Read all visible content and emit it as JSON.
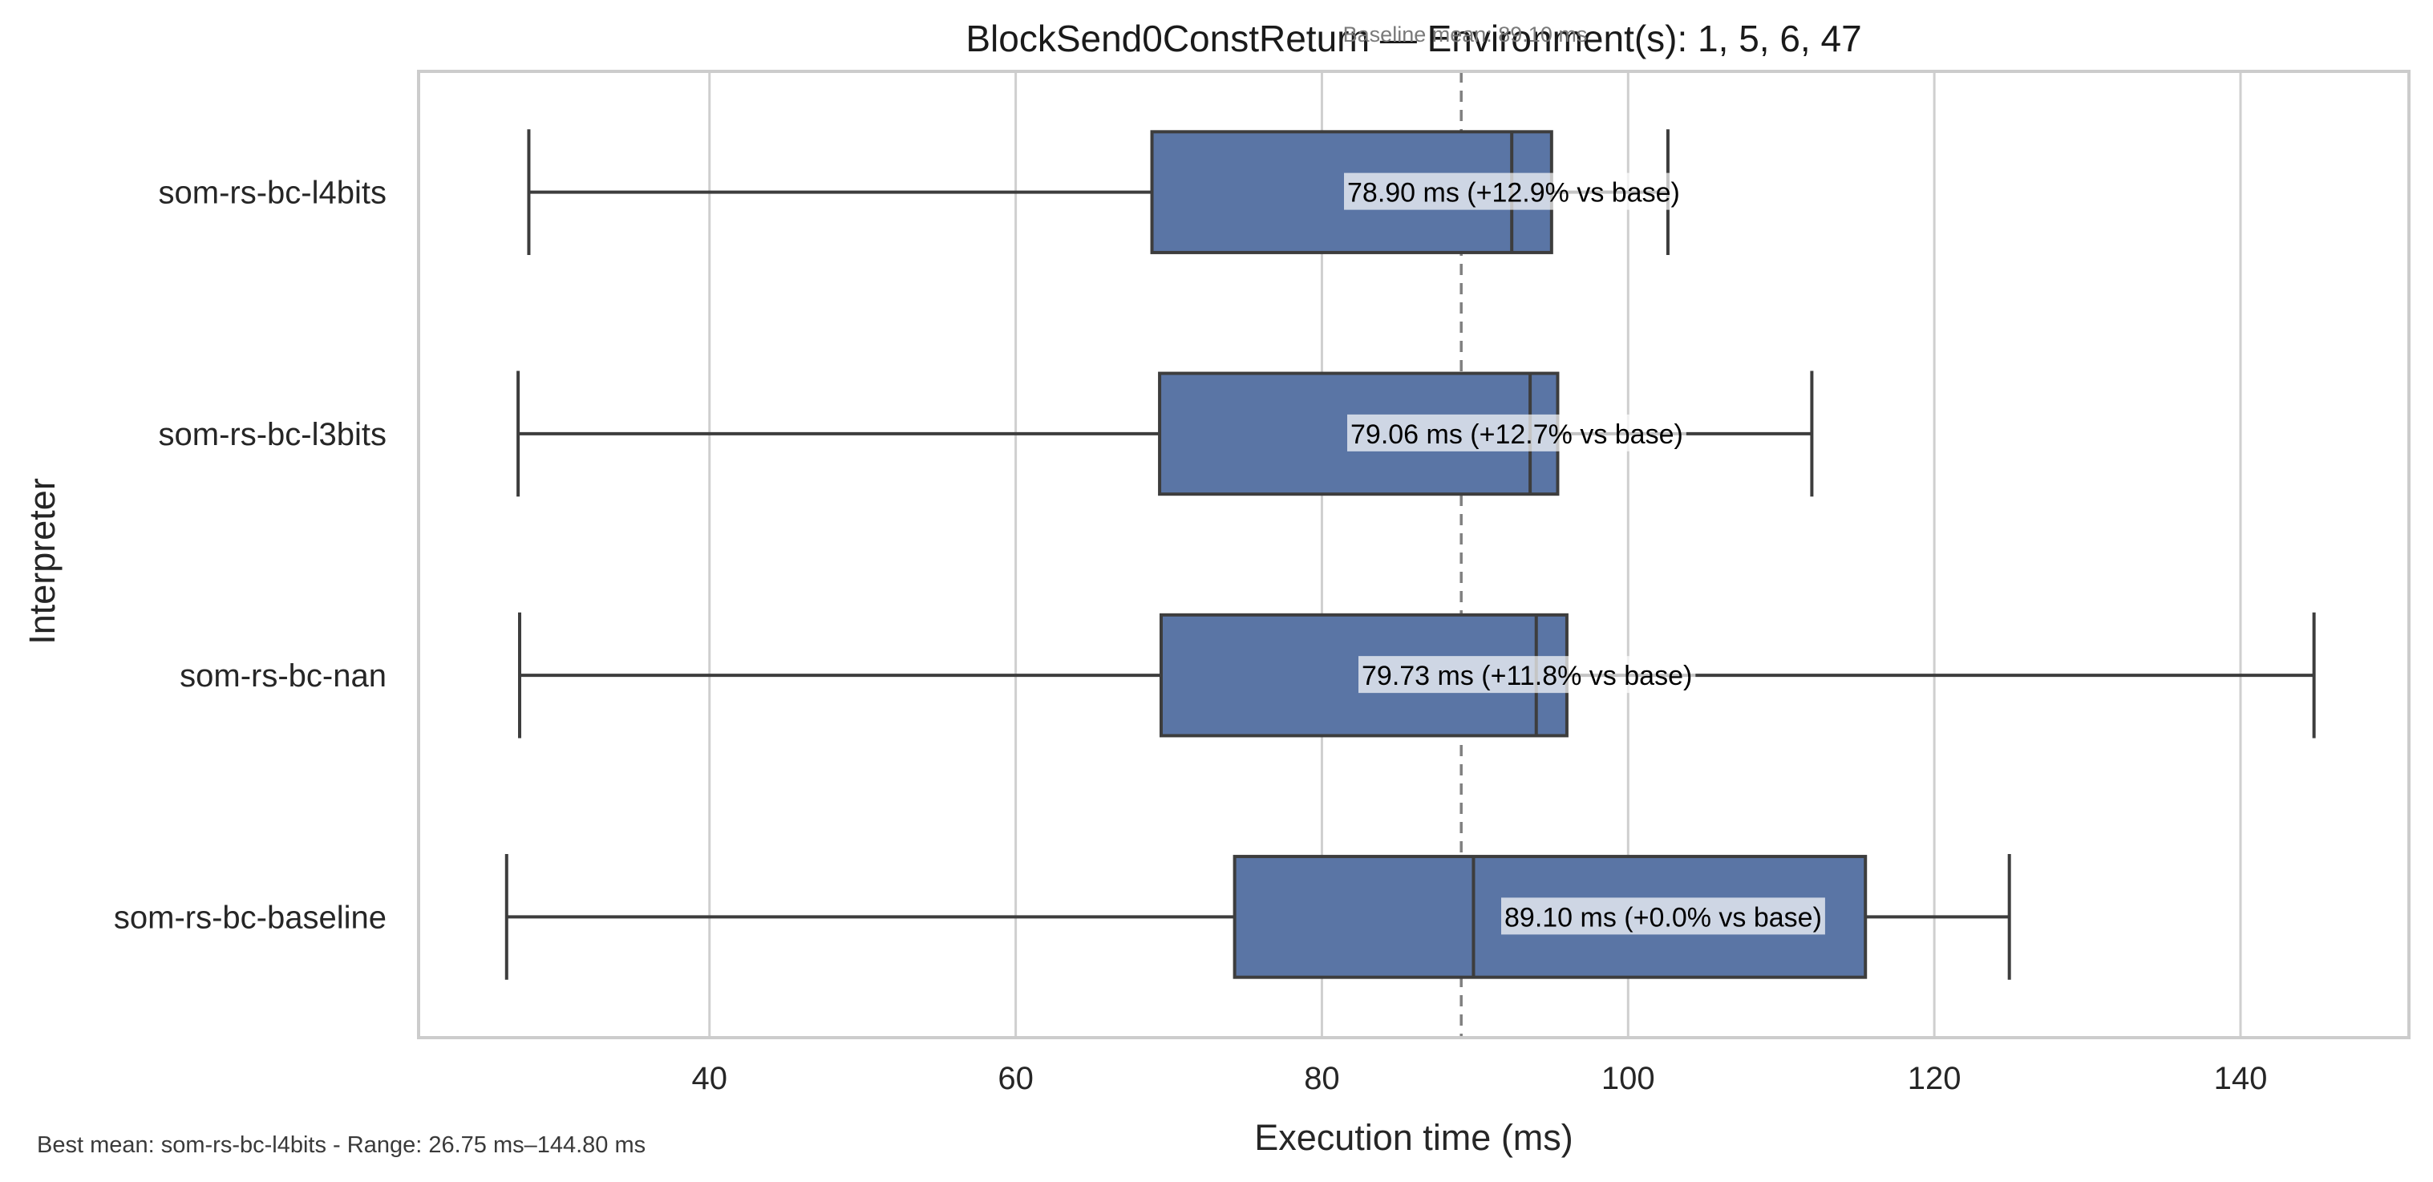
{
  "chart_data": {
    "type": "box",
    "orientation": "horizontal",
    "title": "BlockSend0ConstReturn — Environment(s): 1, 5, 6, 47",
    "xlabel": "Execution time (ms)",
    "ylabel": "Interpreter",
    "xlim": [
      21,
      151
    ],
    "xticks": [
      40,
      60,
      80,
      100,
      120,
      140
    ],
    "grid": "vertical",
    "box_color": "#5a75a5",
    "baseline": {
      "value": 89.1,
      "label": "Baseline mean: 89.10 ms"
    },
    "categories": [
      "som-rs-bc-l4bits",
      "som-rs-bc-l3bits",
      "som-rs-bc-nan",
      "som-rs-bc-baseline"
    ],
    "series": [
      {
        "category": "som-rs-bc-l4bits",
        "whisker_low": 28.2,
        "q1": 68.9,
        "median": 92.4,
        "q3": 95.0,
        "whisker_high": 102.6,
        "label": "78.90 ms  (+12.9% vs base)"
      },
      {
        "category": "som-rs-bc-l3bits",
        "whisker_low": 27.5,
        "q1": 69.4,
        "median": 93.6,
        "q3": 95.4,
        "whisker_high": 112.0,
        "label": "79.06 ms  (+12.7% vs base)"
      },
      {
        "category": "som-rs-bc-nan",
        "whisker_low": 27.6,
        "q1": 69.5,
        "median": 94.0,
        "q3": 96.0,
        "whisker_high": 144.8,
        "label": "79.73 ms  (+11.8% vs base)"
      },
      {
        "category": "som-rs-bc-baseline",
        "whisker_low": 26.75,
        "q1": 74.3,
        "median": 89.9,
        "q3": 115.5,
        "whisker_high": 124.9,
        "label": "89.10 ms  (+0.0% vs base)"
      }
    ],
    "footer": "Best mean: som-rs-bc-l4bits - Range: 26.75 ms–144.80 ms"
  }
}
